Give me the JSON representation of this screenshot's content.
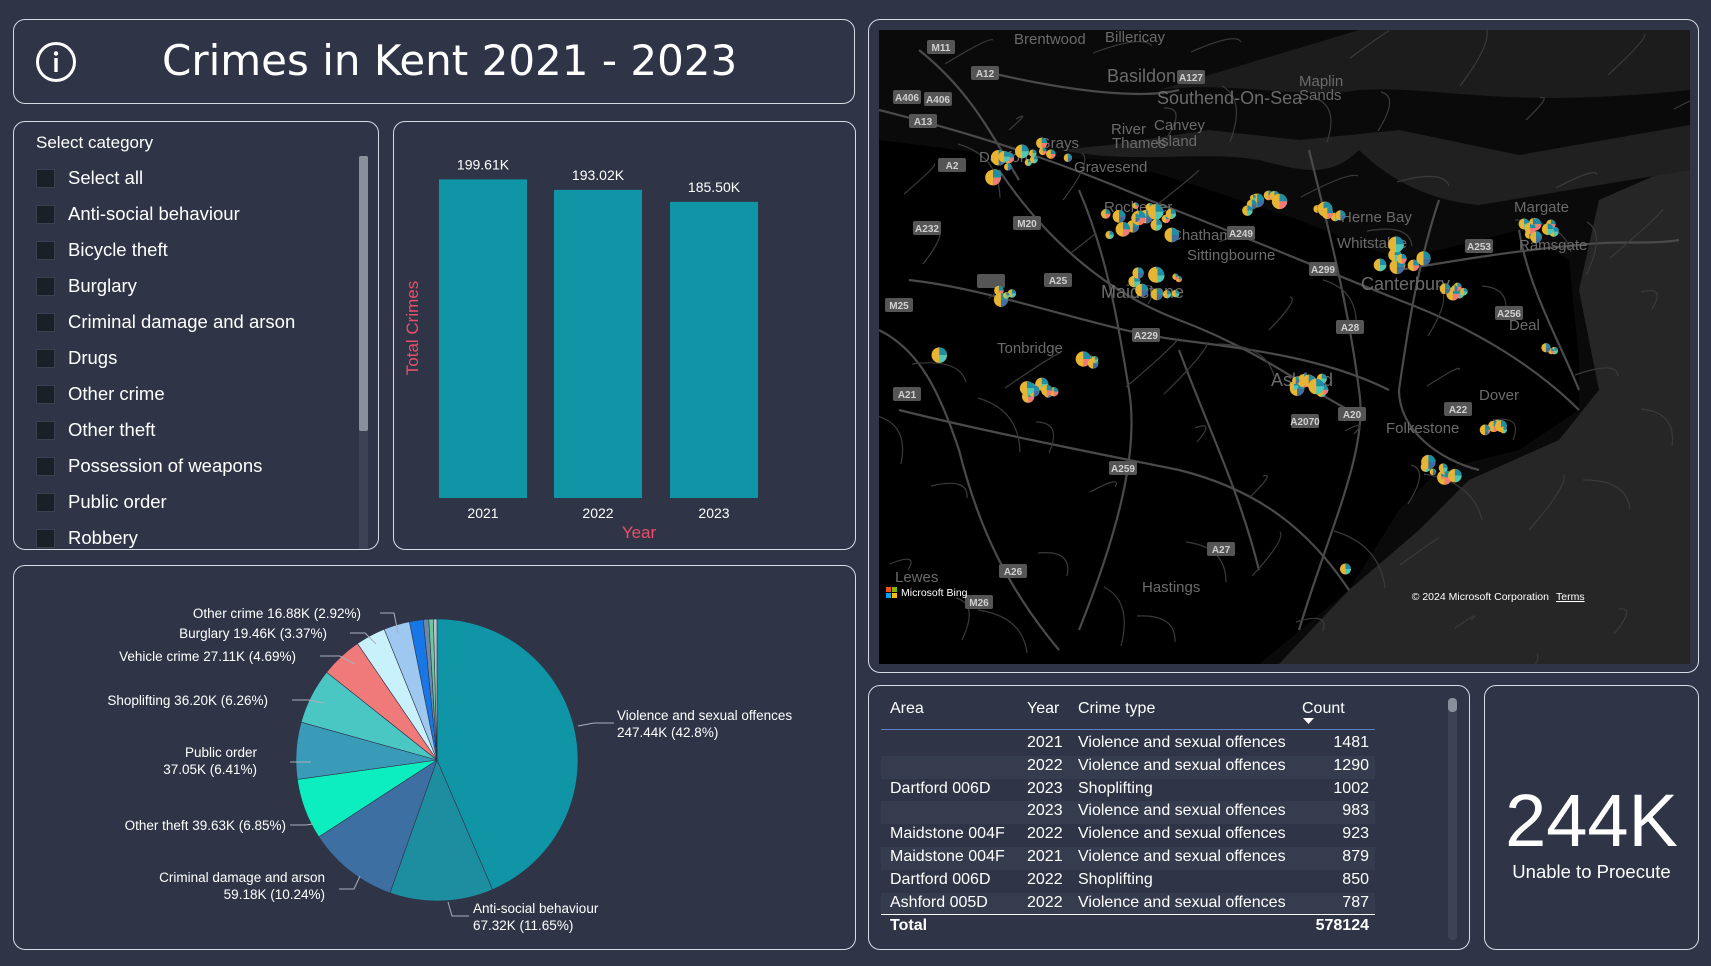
{
  "title": "Crimes in Kent 2021 - 2023",
  "colors": {
    "background": "#2f3547",
    "bar": "#0f95a5",
    "axis_title": "#e8506a",
    "map_bg": "#000000"
  },
  "slicer": {
    "header": "Select category",
    "items": [
      {
        "label": "Select all"
      },
      {
        "label": "Anti-social behaviour"
      },
      {
        "label": "Bicycle theft"
      },
      {
        "label": "Burglary"
      },
      {
        "label": "Criminal damage and arson"
      },
      {
        "label": "Drugs"
      },
      {
        "label": "Other crime"
      },
      {
        "label": "Other theft"
      },
      {
        "label": "Possession of weapons"
      },
      {
        "label": "Public order"
      },
      {
        "label": "Robbery"
      }
    ]
  },
  "chart_data": [
    {
      "type": "bar",
      "categories": [
        "2021",
        "2022",
        "2023"
      ],
      "values": [
        199610,
        193020,
        185500
      ],
      "data_labels": [
        "199.61K",
        "193.02K",
        "185.50K"
      ],
      "xlabel": "Year",
      "ylabel": "Total Crimes",
      "ylim": [
        0,
        210000
      ],
      "grid": false,
      "color": "#0f95a5"
    },
    {
      "type": "pie",
      "slices": [
        {
          "label": "Violence and sexual offences",
          "value": 247440,
          "display": "247.44K (42.8%)",
          "color": "#0f95a5"
        },
        {
          "label": "Anti-social behaviour",
          "value": 67320,
          "display": "67.32K (11.65%)",
          "color": "#1c8ea0"
        },
        {
          "label": "Criminal damage and arson",
          "value": 59180,
          "display": "59.18K (10.24%)",
          "color": "#3d6fa3"
        },
        {
          "label": "Other theft",
          "value": 39630,
          "display": "39.63K (6.85%)",
          "color": "#0deec0"
        },
        {
          "label": "Public order",
          "value": 37050,
          "display": "37.05K (6.41%)",
          "color": "#3a9bb8"
        },
        {
          "label": "Shoplifting",
          "value": 36200,
          "display": "36.20K (6.26%)",
          "color": "#4ac6c3"
        },
        {
          "label": "Vehicle crime",
          "value": 27110,
          "display": "27.11K (4.69%)",
          "color": "#f07a7a"
        },
        {
          "label": "Burglary",
          "value": 19460,
          "display": "19.46K (3.37%)",
          "color": "#c9f1fb"
        },
        {
          "label": "Other crime",
          "value": 16880,
          "display": "16.88K (2.92%)",
          "color": "#9ec8f0"
        },
        {
          "label": "",
          "value": 9000,
          "display": "",
          "color": "#1877e6"
        },
        {
          "label": "",
          "value": 3500,
          "display": "",
          "color": "#6a8aa8"
        },
        {
          "label": "",
          "value": 3000,
          "display": "",
          "color": "#6cc79a"
        },
        {
          "label": "",
          "value": 2300,
          "display": "",
          "color": "#b7c2d0"
        }
      ],
      "label_texts": {
        "violence": "Violence and sexual offences",
        "violence_val": "247.44K (42.8%)",
        "asb": "Anti-social behaviour",
        "asb_val": "67.32K (11.65%)",
        "cda": "Criminal damage and arson",
        "cda_val": "59.18K (10.24%)",
        "other_theft": "Other theft 39.63K (6.85%)",
        "public_order": "Public order",
        "public_order_val": "37.05K (6.41%)",
        "shoplifting": "Shoplifting 36.20K (6.26%)",
        "vehicle": "Vehicle crime 27.11K (4.69%)",
        "burglary": "Burglary 19.46K (3.37%)",
        "other_crime": "Other crime 16.88K (2.92%)"
      }
    }
  ],
  "map": {
    "attribution_brand": "Microsoft Bing",
    "copyright": "© 2024 Microsoft Corporation",
    "terms": "Terms",
    "places": [
      "Brentwood",
      "Billericay",
      "Basildon",
      "Southend-On-Sea",
      "Maplin",
      "Sands",
      "Grays",
      "River",
      "Thames",
      "Canvey",
      "Island",
      "Dartford",
      "Gravesend",
      "Rochester",
      "Chatham",
      "Sittingbourne",
      "Herne Bay",
      "Whitstable",
      "Margate",
      "Ramsgate",
      "Canterbury",
      "Maidstone",
      "Tonbridge",
      "Deal",
      "Ashford",
      "Dover",
      "Folkestone",
      "Lewes",
      "Hastings"
    ],
    "roads": [
      "M11",
      "A12",
      "A127",
      "A406",
      "A13",
      "A2",
      "A232",
      "M20",
      "M25",
      "A25",
      "A229",
      "A249",
      "A299",
      "A253",
      "A256",
      "A28",
      "A2070",
      "A20",
      "A22",
      "A21",
      "A259",
      "A27",
      "A26",
      "M26"
    ]
  },
  "table": {
    "headers": {
      "area": "Area",
      "year": "Year",
      "crime_type": "Crime type",
      "count": "Count"
    },
    "rows": [
      {
        "area": "",
        "year": "2021",
        "crime_type": "Violence and sexual offences",
        "count": "1481"
      },
      {
        "area": "",
        "year": "2022",
        "crime_type": "Violence and sexual offences",
        "count": "1290"
      },
      {
        "area": "Dartford 006D",
        "year": "2023",
        "crime_type": "Shoplifting",
        "count": "1002"
      },
      {
        "area": "",
        "year": "2023",
        "crime_type": "Violence and sexual offences",
        "count": "983"
      },
      {
        "area": "Maidstone 004F",
        "year": "2022",
        "crime_type": "Violence and sexual offences",
        "count": "923"
      },
      {
        "area": "Maidstone 004F",
        "year": "2021",
        "crime_type": "Violence and sexual offences",
        "count": "879"
      },
      {
        "area": "Dartford 006D",
        "year": "2022",
        "crime_type": "Shoplifting",
        "count": "850"
      },
      {
        "area": "Ashford 005D",
        "year": "2022",
        "crime_type": "Violence and sexual offences",
        "count": "787"
      }
    ],
    "total_label": "Total",
    "total_value": "578124"
  },
  "card": {
    "value": "244K",
    "label": "Unable to Proecute"
  }
}
